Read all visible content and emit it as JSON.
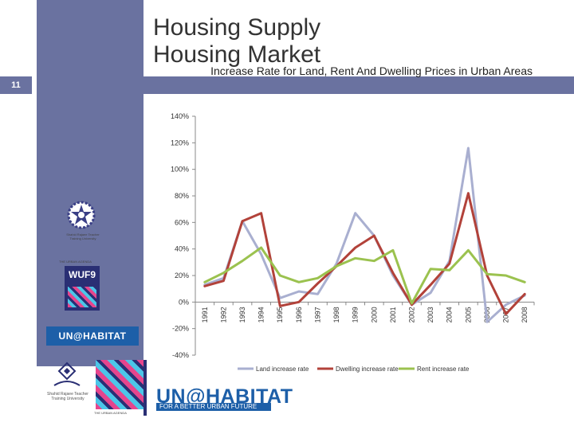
{
  "slide": {
    "number": "11",
    "title_line1": "Housing Supply",
    "title_line2": "Housing Market"
  },
  "logos": {
    "training_center_caption": "Shahid Rajaee Teacher\nTraining University",
    "wuf_label": "THE URBAN AGENDA",
    "wuf_text": "WUF9",
    "un_habitat_small": "UN@HABITAT",
    "uni_caption": "Shahid Rajaee Teacher\nTraining University",
    "un_habitat_big": "UN@HABITAT",
    "un_habitat_tagline": "FOR A BETTER URBAN FUTURE"
  },
  "colors": {
    "panel": "#6a72a0",
    "land": "#a9afd0",
    "dwelling": "#b2423a",
    "rent": "#9bc24f"
  },
  "chart_data": {
    "type": "line",
    "title": "Increase Rate for Land, Rent And Dwelling Prices in Urban Areas",
    "xlabel": "",
    "ylabel": "",
    "ylim": [
      -40,
      140
    ],
    "yticks": [
      -40,
      -20,
      0,
      20,
      40,
      60,
      80,
      100,
      120,
      140
    ],
    "ytick_labels": [
      "-40%",
      "-20%",
      "0%",
      "20%",
      "40%",
      "60%",
      "80%",
      "100%",
      "120%",
      "140%"
    ],
    "categories": [
      "1991",
      "1992",
      "1993",
      "1994",
      "1995",
      "1996",
      "1997",
      "1998",
      "1999",
      "2000",
      "2001",
      "2002",
      "2003",
      "2004",
      "2005",
      "2006",
      "2007",
      "2008"
    ],
    "legend_position": "bottom",
    "grid": false,
    "series": [
      {
        "name": "Land increase rate",
        "color_key": "land",
        "values": [
          13,
          18,
          61,
          36,
          3,
          8,
          6,
          29,
          67,
          50,
          20,
          -2,
          7,
          31,
          116,
          -15,
          -2,
          5
        ]
      },
      {
        "name": "Dwelling increase rate",
        "color_key": "dwelling",
        "values": [
          12,
          16,
          61,
          67,
          -3,
          0,
          14,
          27,
          41,
          50,
          22,
          -2,
          13,
          29,
          82,
          20,
          -9,
          6
        ]
      },
      {
        "name": "Rent increase rate",
        "color_key": "rent",
        "values": [
          15,
          22,
          31,
          41,
          20,
          15,
          18,
          27,
          33,
          31,
          39,
          -1,
          25,
          24,
          39,
          21,
          20,
          15
        ]
      }
    ]
  }
}
